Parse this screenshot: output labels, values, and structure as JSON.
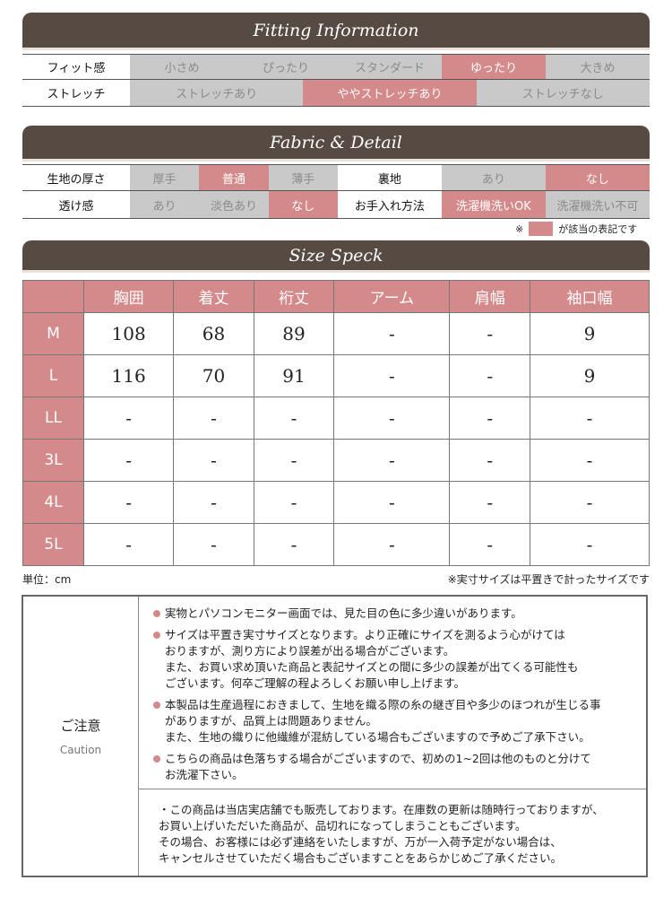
{
  "fitting": {
    "title": "Fitting Information",
    "fit": {
      "label": "フィット感",
      "options": [
        "小さめ",
        "ぴったり",
        "スタンダード",
        "ゆったり",
        "大きめ"
      ],
      "selected": 3
    },
    "stretch": {
      "label": "ストレッチ",
      "options": [
        "ストレッチあり",
        "ややストレッチあり",
        "ストレッチなし"
      ],
      "selected": 1
    }
  },
  "fabric": {
    "title": "Fabric & Detail",
    "thickness": {
      "label": "生地の厚さ",
      "options": [
        "厚手",
        "普通",
        "薄手"
      ],
      "selected": 1
    },
    "lining": {
      "label": "裏地",
      "options": [
        "あり",
        "なし"
      ],
      "selected": 1
    },
    "sheer": {
      "label": "透け感",
      "options": [
        "あり",
        "淡色あり",
        "なし"
      ],
      "selected": 2
    },
    "care": {
      "label": "お手入れ方法",
      "options": [
        "洗濯機洗いOK",
        "洗濯機洗い不可"
      ],
      "selected": 0
    },
    "note_prefix": "※",
    "note_suffix": "が該当の表記です"
  },
  "size": {
    "title": "Size Speck",
    "headers": [
      "",
      "胸囲",
      "着丈",
      "裄丈",
      "アーム",
      "肩幅",
      "袖口幅"
    ],
    "rows": [
      [
        "M",
        "108",
        "68",
        "89",
        "-",
        "-",
        "9"
      ],
      [
        "L",
        "116",
        "70",
        "91",
        "-",
        "-",
        "9"
      ],
      [
        "LL",
        "-",
        "-",
        "-",
        "-",
        "-",
        "-"
      ],
      [
        "3L",
        "-",
        "-",
        "-",
        "-",
        "-",
        "-"
      ],
      [
        "4L",
        "-",
        "-",
        "-",
        "-",
        "-",
        "-"
      ],
      [
        "5L",
        "-",
        "-",
        "-",
        "-",
        "-",
        "-"
      ]
    ],
    "unit": "単位：cm",
    "measure_note": "※実寸サイズは平置きで計ったサイズです"
  },
  "caution": {
    "title": "ご注意",
    "subtitle": "Caution",
    "items": [
      "実物とパソコンモニター画面では、見た目の色に多少違いがあります。",
      "サイズは平置き実寸サイズとなります。より正確にサイズを測るよう心がけては\nおりますが、測り方により誤差が出る場合がございます。\nまた、お買い求め頂いた商品と表記サイズとの間に多少の誤差が出てくる可能性も\nございます。何卒ご理解の程よろしくお願い申し上げます。",
      "本製品は生産過程におきまして、生地を織る際の糸の継ぎ目や多少のほつれが生じる事\nがありますが、品質上は問題ありません。\nまた、生地の織りに他繊維が混紡している場合もございますので予めご了承下さい。",
      "こちらの商品は色落ちする場合がございますので、初めの1~2回は他のものと分けて\nお洗濯下さい。"
    ],
    "stock_note": "・この商品は当店実店舗でも販売しております。在庫数の更新は随時行っておりますが、\nお買い上げいただいた商品が、品切れになってしまうこともございます。\nその場合、お客様には必ず連絡をいたしますが、万が一入荷予定がない場合は、\nキャンセルさせていただく場合もございますことをあらかじめご了承ください。"
  },
  "colors": {
    "header": "#574a42",
    "selected": "#d48a8a",
    "unselected": "#c9c9c9"
  }
}
